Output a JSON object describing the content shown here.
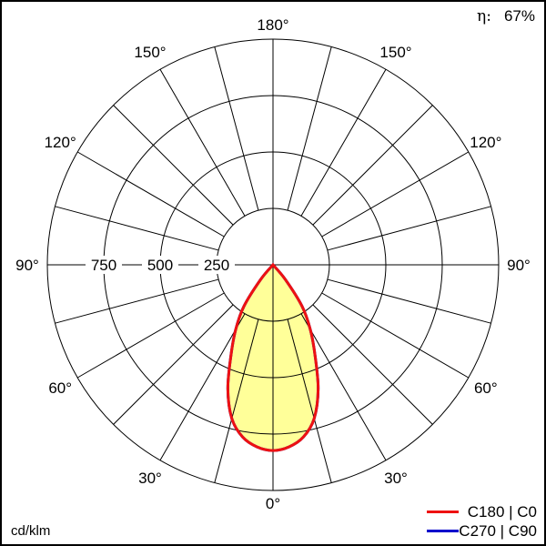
{
  "chart_data": {
    "type": "polar",
    "unit_label": "cd/klm",
    "efficiency_label": "η:",
    "efficiency_value": "67%",
    "radial_ticks": [
      250,
      500,
      750
    ],
    "radial_max": 1000,
    "radial_tick_labels": [
      "250",
      "500",
      "750"
    ],
    "angle_labels": [
      "0°",
      "30°",
      "60°",
      "90°",
      "120°",
      "150°",
      "180°"
    ],
    "angle_spoke_step_deg": 15,
    "grid": true,
    "legend_position": "bottom-right",
    "angles_deg": [
      0,
      5,
      10,
      15,
      20,
      25,
      30,
      35,
      40,
      45
    ],
    "series": [
      {
        "name": "C270 | C90",
        "color": "#0000cc",
        "values": [
          823,
          810,
          775,
          705,
          585,
          440,
          330,
          225,
          85,
          0
        ]
      },
      {
        "name": "C180 | C0",
        "color": "#ee1111",
        "values": [
          823,
          810,
          775,
          705,
          585,
          440,
          330,
          225,
          85,
          0
        ]
      }
    ],
    "fill_color": "#ffff99"
  }
}
